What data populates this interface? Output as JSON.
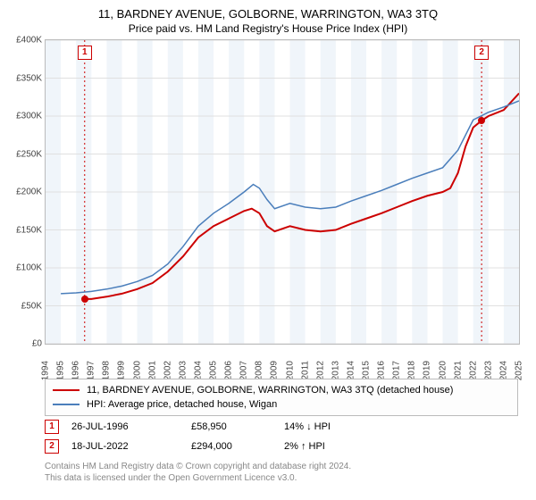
{
  "title": "11, BARDNEY AVENUE, GOLBORNE, WARRINGTON, WA3 3TQ",
  "subtitle": "Price paid vs. HM Land Registry's House Price Index (HPI)",
  "chart": {
    "type": "line",
    "background_color": "#ffffff",
    "plotband_color": "#f0f5fa",
    "grid_color": "#e0e0e0",
    "border_color": "#bbbbbb",
    "x": {
      "min": 1994,
      "max": 2025,
      "ticks": [
        1994,
        1995,
        1996,
        1997,
        1998,
        1999,
        2000,
        2001,
        2002,
        2003,
        2004,
        2005,
        2006,
        2007,
        2008,
        2009,
        2010,
        2011,
        2012,
        2013,
        2014,
        2015,
        2016,
        2017,
        2018,
        2019,
        2020,
        2021,
        2022,
        2023,
        2024,
        2025
      ],
      "plotbands": [
        [
          1994,
          1995
        ],
        [
          1996,
          1997
        ],
        [
          1998,
          1999
        ],
        [
          2000,
          2001
        ],
        [
          2002,
          2003
        ],
        [
          2004,
          2005
        ],
        [
          2006,
          2007
        ],
        [
          2008,
          2009
        ],
        [
          2010,
          2011
        ],
        [
          2012,
          2013
        ],
        [
          2014,
          2015
        ],
        [
          2016,
          2017
        ],
        [
          2018,
          2019
        ],
        [
          2020,
          2021
        ],
        [
          2022,
          2023
        ],
        [
          2024,
          2025
        ]
      ]
    },
    "y": {
      "min": 0,
      "max": 400000,
      "ticks": [
        0,
        50000,
        100000,
        150000,
        200000,
        250000,
        300000,
        350000,
        400000
      ],
      "tick_labels": [
        "£0",
        "£50K",
        "£100K",
        "£150K",
        "£200K",
        "£250K",
        "£300K",
        "£350K",
        "£400K"
      ]
    },
    "series": [
      {
        "name": "11, BARDNEY AVENUE, GOLBORNE, WARRINGTON, WA3 3TQ (detached house)",
        "color": "#cc0000",
        "width": 2,
        "data": [
          [
            1996.56,
            58950
          ],
          [
            1997,
            59000
          ],
          [
            1998,
            62000
          ],
          [
            1999,
            66000
          ],
          [
            2000,
            72000
          ],
          [
            2001,
            80000
          ],
          [
            2002,
            95000
          ],
          [
            2003,
            115000
          ],
          [
            2004,
            140000
          ],
          [
            2005,
            155000
          ],
          [
            2006,
            165000
          ],
          [
            2007,
            175000
          ],
          [
            2007.5,
            178000
          ],
          [
            2008,
            172000
          ],
          [
            2008.5,
            155000
          ],
          [
            2009,
            148000
          ],
          [
            2010,
            155000
          ],
          [
            2011,
            150000
          ],
          [
            2012,
            148000
          ],
          [
            2013,
            150000
          ],
          [
            2014,
            158000
          ],
          [
            2015,
            165000
          ],
          [
            2016,
            172000
          ],
          [
            2017,
            180000
          ],
          [
            2018,
            188000
          ],
          [
            2019,
            195000
          ],
          [
            2020,
            200000
          ],
          [
            2020.5,
            205000
          ],
          [
            2021,
            225000
          ],
          [
            2021.5,
            260000
          ],
          [
            2022,
            285000
          ],
          [
            2022.55,
            294000
          ],
          [
            2023,
            300000
          ],
          [
            2024,
            308000
          ],
          [
            2025,
            330000
          ]
        ]
      },
      {
        "name": "HPI: Average price, detached house, Wigan",
        "color": "#4a7ebb",
        "width": 1.5,
        "data": [
          [
            1995,
            66000
          ],
          [
            1996,
            67000
          ],
          [
            1997,
            69000
          ],
          [
            1998,
            72000
          ],
          [
            1999,
            76000
          ],
          [
            2000,
            82000
          ],
          [
            2001,
            90000
          ],
          [
            2002,
            105000
          ],
          [
            2003,
            128000
          ],
          [
            2004,
            155000
          ],
          [
            2005,
            172000
          ],
          [
            2006,
            185000
          ],
          [
            2007,
            200000
          ],
          [
            2007.6,
            210000
          ],
          [
            2008,
            205000
          ],
          [
            2008.5,
            190000
          ],
          [
            2009,
            178000
          ],
          [
            2010,
            185000
          ],
          [
            2011,
            180000
          ],
          [
            2012,
            178000
          ],
          [
            2013,
            180000
          ],
          [
            2014,
            188000
          ],
          [
            2015,
            195000
          ],
          [
            2016,
            202000
          ],
          [
            2017,
            210000
          ],
          [
            2018,
            218000
          ],
          [
            2019,
            225000
          ],
          [
            2020,
            232000
          ],
          [
            2021,
            255000
          ],
          [
            2022,
            295000
          ],
          [
            2023,
            305000
          ],
          [
            2024,
            312000
          ],
          [
            2025,
            320000
          ]
        ]
      }
    ],
    "event_markers": [
      {
        "n": "1",
        "x": 1996.56,
        "line_color": "#cc0000",
        "box_color": "#cc0000",
        "dot_y": 58950
      },
      {
        "n": "2",
        "x": 2022.55,
        "line_color": "#cc0000",
        "box_color": "#cc0000",
        "dot_y": 294000
      }
    ]
  },
  "legend": {
    "items": [
      {
        "color": "#cc0000",
        "label": "11, BARDNEY AVENUE, GOLBORNE, WARRINGTON, WA3 3TQ (detached house)"
      },
      {
        "color": "#4a7ebb",
        "label": "HPI: Average price, detached house, Wigan"
      }
    ]
  },
  "sales": [
    {
      "n": "1",
      "box_color": "#cc0000",
      "date": "26-JUL-1996",
      "price": "£58,950",
      "delta": "14% ↓ HPI"
    },
    {
      "n": "2",
      "box_color": "#cc0000",
      "date": "18-JUL-2022",
      "price": "£294,000",
      "delta": "2% ↑ HPI"
    }
  ],
  "footer_line1": "Contains HM Land Registry data © Crown copyright and database right 2024.",
  "footer_line2": "This data is licensed under the Open Government Licence v3.0."
}
